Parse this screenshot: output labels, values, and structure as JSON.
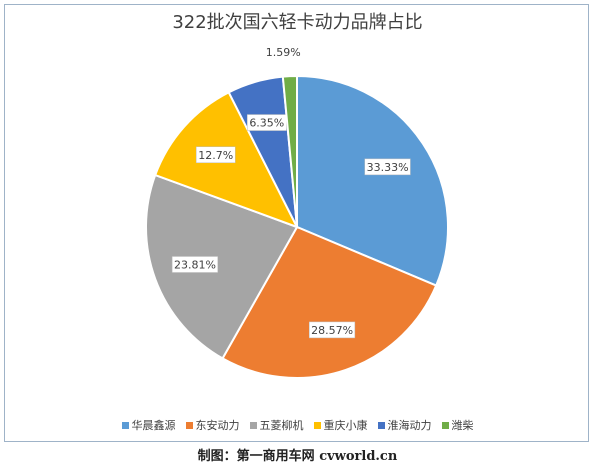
{
  "chart_data": {
    "type": "pie",
    "title": "322批次国六轻卡动力品牌占比",
    "categories": [
      "华晨鑫源",
      "东安动力",
      "五菱柳机",
      "重庆小康",
      "淮海动力",
      "潍柴"
    ],
    "values": [
      33.33,
      28.57,
      23.81,
      12.7,
      6.35,
      1.59
    ],
    "labels": [
      "33.33%",
      "28.57%",
      "23.81%",
      "12.7%",
      "6.35%",
      "1.59%"
    ],
    "colors": [
      "#5b9bd5",
      "#ed7d31",
      "#a5a5a5",
      "#ffc000",
      "#4472c4",
      "#70ad47"
    ],
    "legend_position": "bottom"
  },
  "footer": "制图：第一商用车网 cvworld.cn"
}
